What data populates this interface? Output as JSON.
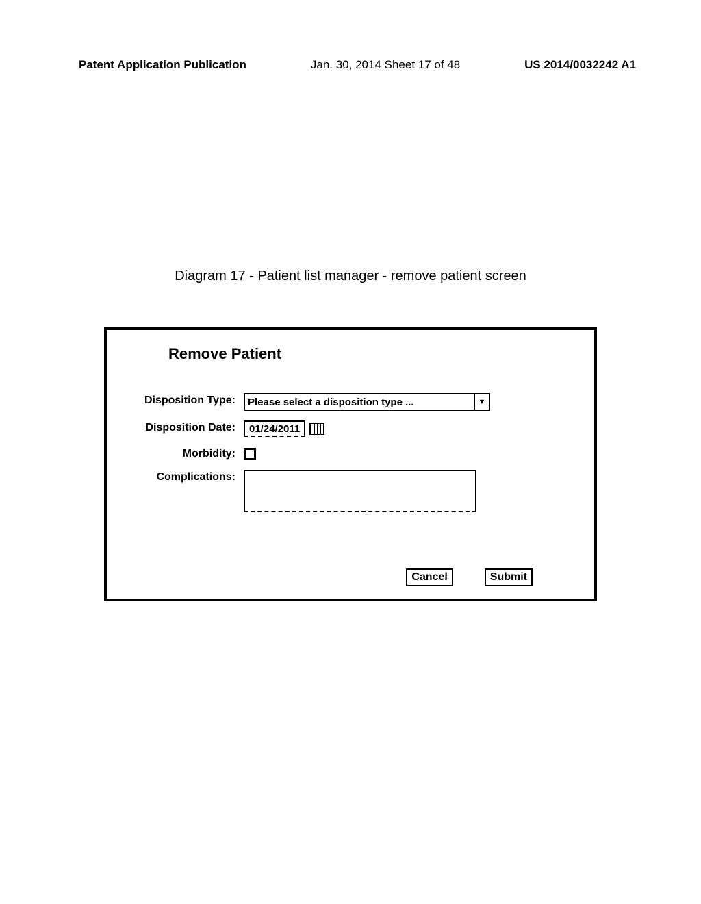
{
  "header": {
    "left": "Patent Application Publication",
    "center": "Jan. 30, 2014  Sheet 17 of 48",
    "right": "US 2014/0032242 A1"
  },
  "caption": "Diagram 17 - Patient list manager - remove patient screen",
  "dialog": {
    "title": "Remove Patient",
    "labels": {
      "dispositionType": "Disposition Type:",
      "dispositionDate": "Disposition Date:",
      "morbidity": "Morbidity:",
      "complications": "Complications:"
    },
    "dispositionTypePlaceholder": "Please select a disposition type ...",
    "dispositionDateValue": "01/24/2011",
    "morbidityChecked": false,
    "complicationsValue": "",
    "buttons": {
      "cancel": "Cancel",
      "submit": "Submit"
    }
  },
  "colors": {
    "background": "#ffffff",
    "text": "#000000",
    "border": "#000000"
  }
}
